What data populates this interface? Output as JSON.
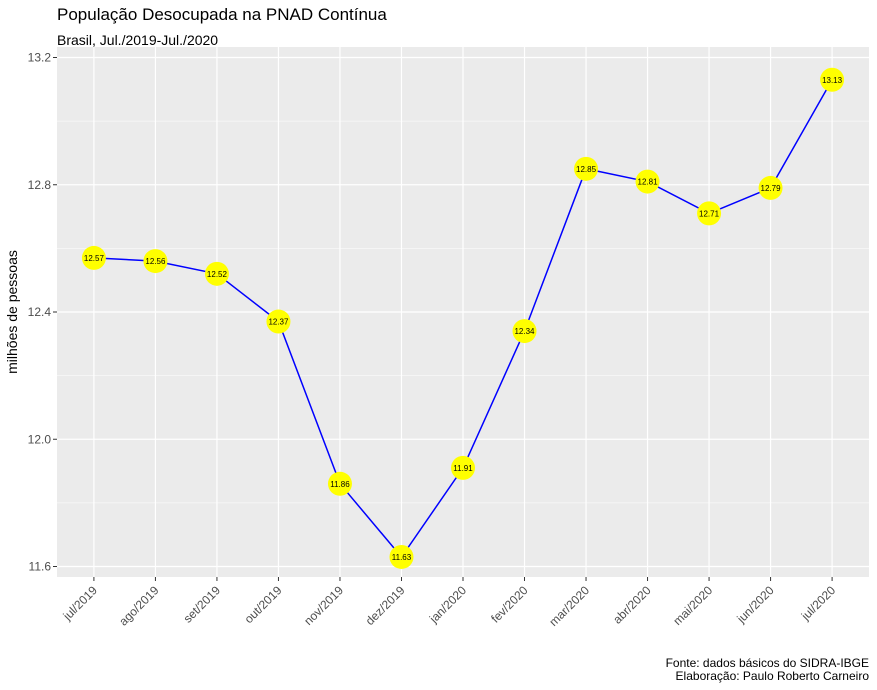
{
  "chart_data": {
    "type": "line",
    "title": "População Desocupada na PNAD Contínua",
    "subtitle": "Brasil, Jul./2019-Jul./2020",
    "xlabel": "",
    "ylabel": "milhões de pessoas",
    "categories": [
      "jul/2019",
      "ago/2019",
      "set/2019",
      "out/2019",
      "nov/2019",
      "dez/2019",
      "jan/2020",
      "fev/2020",
      "mar/2020",
      "abr/2020",
      "mai/2020",
      "jun/2020",
      "jul/2020"
    ],
    "values": [
      12.57,
      12.56,
      12.52,
      12.37,
      11.86,
      11.63,
      11.91,
      12.34,
      12.85,
      12.81,
      12.71,
      12.79,
      13.13
    ],
    "data_labels": [
      "12.57",
      "12.56",
      "12.52",
      "12.37",
      "11.86",
      "11.63",
      "11.91",
      "12.34",
      "12.85",
      "12.81",
      "12.71",
      "12.79",
      "13.13"
    ],
    "ylim": [
      11.57,
      13.2
    ],
    "yticks": [
      11.6,
      12.0,
      12.4,
      12.8,
      13.2
    ],
    "ytick_labels": [
      "11.6",
      "12.0",
      "12.4",
      "12.8",
      "13.2"
    ],
    "grid": true,
    "colors": {
      "line": "#0000ff",
      "point": "#ffff00",
      "panel": "#ebebeb",
      "grid": "#ffffff"
    }
  },
  "caption": {
    "line1": "Fonte: dados básicos do SIDRA-IBGE",
    "line2": "Elaboração: Paulo Roberto Carneiro"
  }
}
